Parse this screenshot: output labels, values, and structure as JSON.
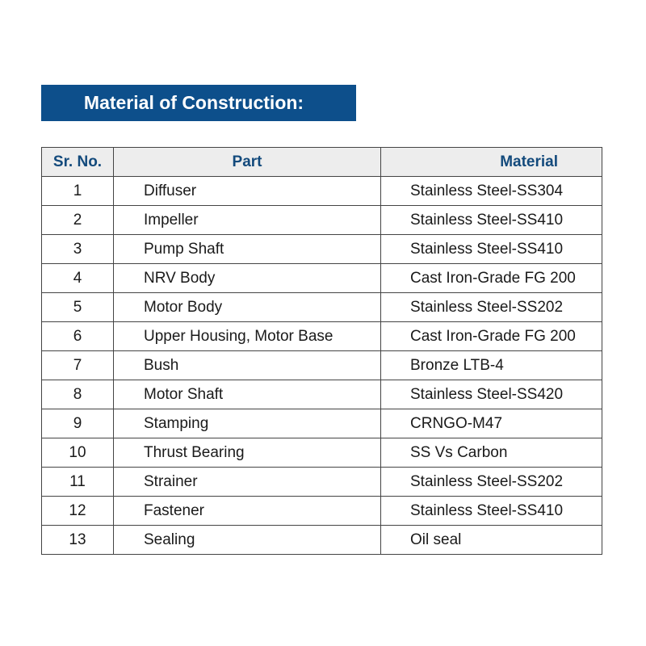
{
  "title": "Material of Construction:",
  "columns": [
    "Sr. No.",
    "Part",
    "Material"
  ],
  "rows": [
    {
      "no": "1",
      "part": "Diffuser",
      "material": "Stainless Steel-SS304"
    },
    {
      "no": "2",
      "part": "Impeller",
      "material": "Stainless Steel-SS410"
    },
    {
      "no": "3",
      "part": "Pump Shaft",
      "material": "Stainless Steel-SS410"
    },
    {
      "no": "4",
      "part": "NRV Body",
      "material": "Cast Iron-Grade FG 200"
    },
    {
      "no": "5",
      "part": "Motor Body",
      "material": "Stainless Steel-SS202"
    },
    {
      "no": "6",
      "part": "Upper Housing, Motor Base",
      "material": "Cast Iron-Grade FG 200"
    },
    {
      "no": "7",
      "part": "Bush",
      "material": "Bronze LTB-4"
    },
    {
      "no": "8",
      "part": "Motor Shaft",
      "material": "Stainless Steel-SS420"
    },
    {
      "no": "9",
      "part": "Stamping",
      "material": "CRNGO-M47"
    },
    {
      "no": "10",
      "part": "Thrust Bearing",
      "material": "SS Vs Carbon"
    },
    {
      "no": "11",
      "part": "Strainer",
      "material": "Stainless Steel-SS202"
    },
    {
      "no": "12",
      "part": "Fastener",
      "material": "Stainless Steel-SS410"
    },
    {
      "no": "13",
      "part": "Sealing",
      "material": "Oil seal"
    }
  ],
  "colors": {
    "banner": "#0d4f8b",
    "header_text": "#134a7c",
    "header_bg": "#ededed"
  }
}
